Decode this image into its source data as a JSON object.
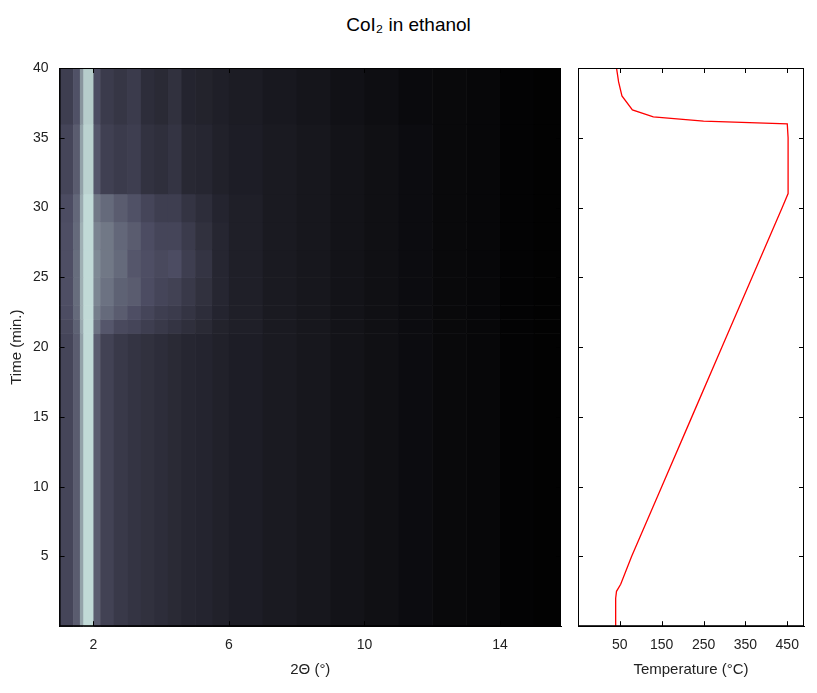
{
  "title": "CoI₂ in ethanol",
  "chart_data": [
    {
      "type": "heatmap",
      "x_label": "2Θ (°)",
      "y_label": "Time (min.)",
      "xlim": [
        1.0,
        15.8
      ],
      "xticks": [
        2,
        6,
        10,
        14
      ],
      "ylim": [
        0,
        40
      ],
      "yticks": [
        5,
        10,
        15,
        20,
        25,
        30,
        35,
        40
      ],
      "x_edges": [
        1.0,
        1.4,
        1.6,
        1.7,
        2.0,
        2.2,
        2.6,
        3.0,
        3.4,
        3.8,
        4.2,
        4.6,
        5.0,
        5.5,
        6,
        7,
        8,
        9,
        10,
        11,
        12,
        13,
        14,
        15,
        15.8
      ],
      "y_edges": [
        0,
        21,
        22,
        23,
        25,
        27,
        29,
        31,
        36,
        40
      ],
      "cells": [
        [
          0.4,
          0.5,
          0.75,
          0.95,
          0.5,
          0.38,
          0.33,
          0.3,
          0.28,
          0.26,
          0.24,
          0.22,
          0.21,
          0.19,
          0.17,
          0.15,
          0.13,
          0.11,
          0.09,
          0.07,
          0.05,
          0.04,
          0.02,
          0.01
        ],
        [
          0.42,
          0.52,
          0.78,
          0.95,
          0.58,
          0.48,
          0.42,
          0.4,
          0.36,
          0.33,
          0.3,
          0.27,
          0.24,
          0.2,
          0.18,
          0.15,
          0.13,
          0.11,
          0.09,
          0.07,
          0.05,
          0.04,
          0.02,
          0.01
        ],
        [
          0.44,
          0.55,
          0.8,
          0.95,
          0.62,
          0.55,
          0.5,
          0.45,
          0.4,
          0.36,
          0.34,
          0.3,
          0.26,
          0.21,
          0.18,
          0.15,
          0.13,
          0.11,
          0.09,
          0.07,
          0.05,
          0.04,
          0.02,
          0.01
        ],
        [
          0.45,
          0.56,
          0.8,
          0.95,
          0.65,
          0.58,
          0.52,
          0.5,
          0.44,
          0.4,
          0.38,
          0.33,
          0.28,
          0.22,
          0.18,
          0.15,
          0.13,
          0.11,
          0.09,
          0.07,
          0.05,
          0.04,
          0.02,
          0.01
        ],
        [
          0.45,
          0.56,
          0.8,
          0.95,
          0.66,
          0.6,
          0.55,
          0.48,
          0.45,
          0.42,
          0.44,
          0.36,
          0.3,
          0.22,
          0.18,
          0.15,
          0.13,
          0.11,
          0.09,
          0.07,
          0.05,
          0.04,
          0.02,
          0.01
        ],
        [
          0.45,
          0.55,
          0.8,
          0.95,
          0.64,
          0.6,
          0.54,
          0.5,
          0.44,
          0.4,
          0.4,
          0.34,
          0.28,
          0.22,
          0.18,
          0.15,
          0.13,
          0.11,
          0.09,
          0.07,
          0.05,
          0.04,
          0.02,
          0.01
        ],
        [
          0.44,
          0.54,
          0.78,
          0.95,
          0.6,
          0.55,
          0.5,
          0.46,
          0.4,
          0.36,
          0.36,
          0.3,
          0.26,
          0.21,
          0.18,
          0.15,
          0.13,
          0.11,
          0.09,
          0.07,
          0.05,
          0.04,
          0.02,
          0.01
        ],
        [
          0.4,
          0.5,
          0.75,
          0.92,
          0.48,
          0.37,
          0.34,
          0.36,
          0.29,
          0.27,
          0.3,
          0.23,
          0.22,
          0.19,
          0.17,
          0.15,
          0.13,
          0.11,
          0.09,
          0.07,
          0.05,
          0.04,
          0.02,
          0.01
        ],
        [
          0.36,
          0.46,
          0.7,
          0.9,
          0.44,
          0.34,
          0.31,
          0.34,
          0.26,
          0.24,
          0.28,
          0.21,
          0.2,
          0.18,
          0.16,
          0.14,
          0.12,
          0.1,
          0.08,
          0.06,
          0.05,
          0.04,
          0.02,
          0.01
        ]
      ]
    },
    {
      "type": "line",
      "x_label": "Temperature (°C)",
      "xlim": [
        -50,
        490
      ],
      "xticks": [
        50,
        150,
        250,
        350,
        450
      ],
      "ylim": [
        0,
        40
      ],
      "yticks": [
        5,
        10,
        15,
        20,
        25,
        30,
        35,
        40
      ],
      "tick_labels": "x",
      "color": "#ff0000",
      "x": [
        40,
        40,
        40,
        42,
        52,
        78,
        150,
        222,
        294,
        366,
        438,
        452,
        452,
        452,
        450,
        250,
        130,
        80,
        55,
        47,
        42
      ],
      "y": [
        0,
        1,
        2,
        2.5,
        3,
        5,
        10,
        15,
        20,
        25,
        30,
        31,
        33,
        35,
        36,
        36.2,
        36.5,
        37,
        38,
        39,
        40
      ]
    }
  ]
}
